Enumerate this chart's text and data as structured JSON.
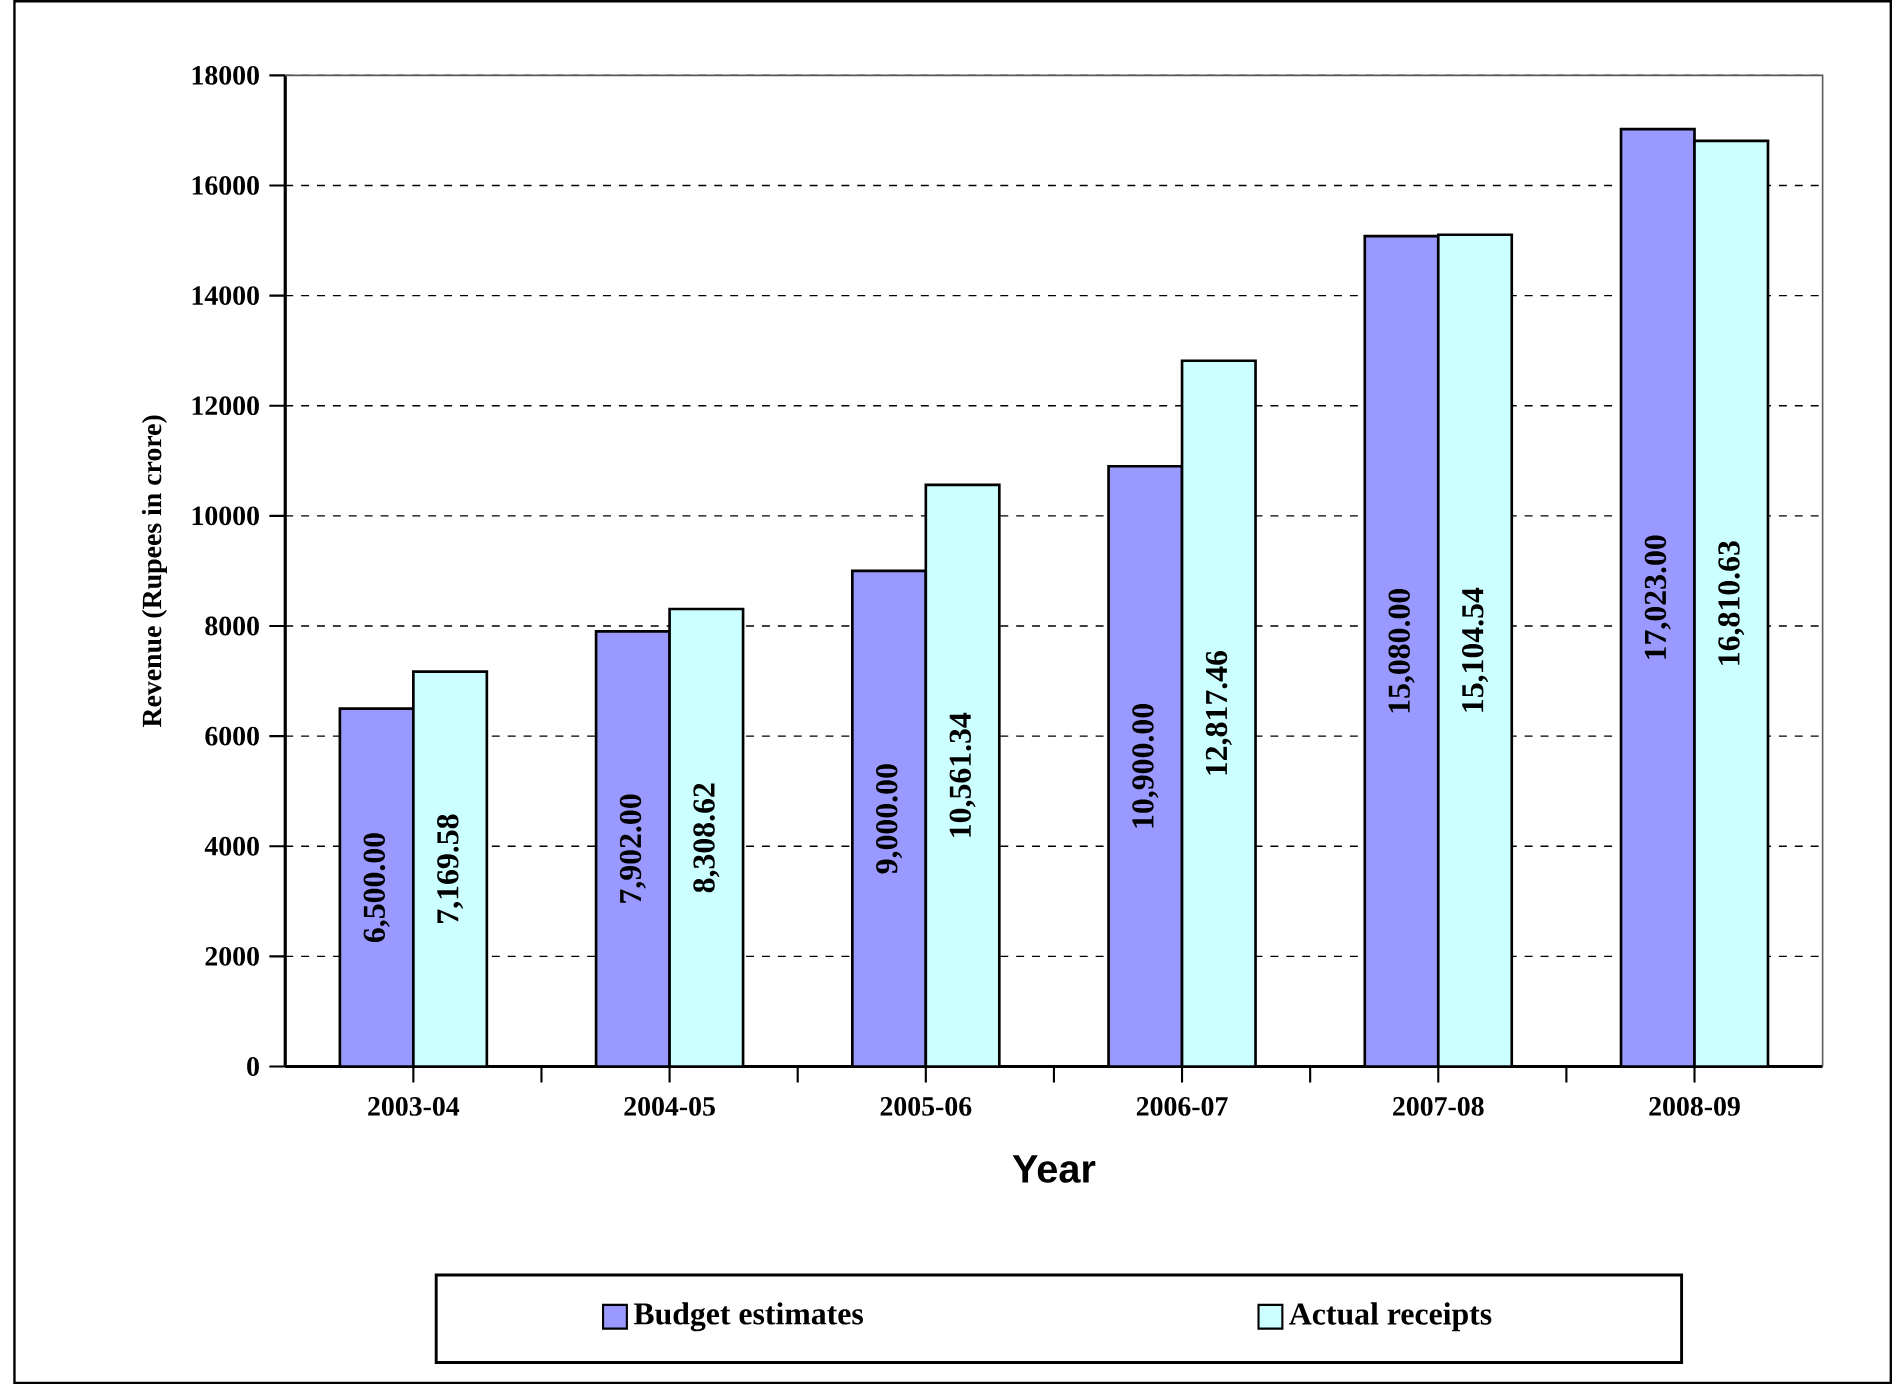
{
  "chart_data": {
    "type": "bar",
    "xlabel": "Year",
    "ylabel": "Revenue (Rupees in crore)",
    "categories": [
      "2003-04",
      "2004-05",
      "2005-06",
      "2006-07",
      "2007-08",
      "2008-09"
    ],
    "series": [
      {
        "name": "Budget estimates",
        "color": "#9999ff",
        "values": [
          6500.0,
          7902.0,
          9000.0,
          10900.0,
          15080.0,
          17023.0
        ],
        "value_labels": [
          "6,500.00",
          "7,902.00",
          "9,000.00",
          "10,900.00",
          "15,080.00",
          "17,023.00"
        ]
      },
      {
        "name": "Actual receipts",
        "color": "#ccffff",
        "values": [
          7169.58,
          8308.62,
          10561.34,
          12817.46,
          15104.54,
          16810.63
        ],
        "value_labels": [
          "7,169.58",
          "8,308.62",
          "10,561.34",
          "12,817.46",
          "15,104.54",
          "16,810.63"
        ]
      }
    ],
    "ylim": [
      0,
      18000
    ],
    "yticks": [
      0,
      2000,
      4000,
      6000,
      8000,
      10000,
      12000,
      14000,
      16000,
      18000
    ],
    "grid": "y",
    "legend": "bottom"
  }
}
